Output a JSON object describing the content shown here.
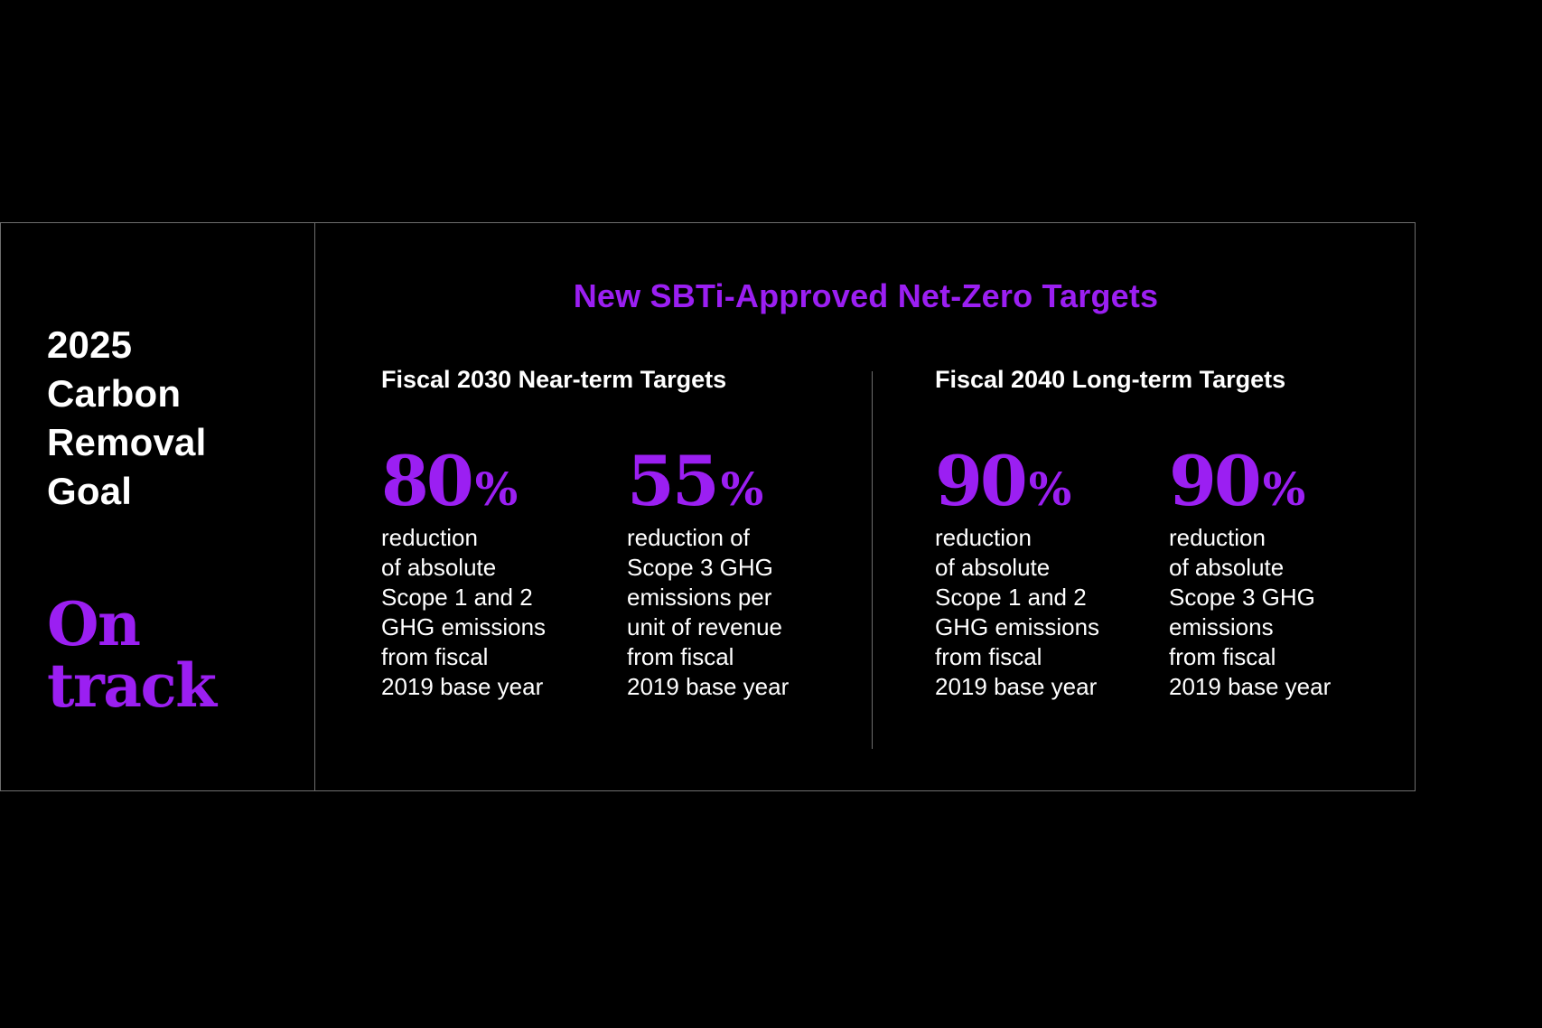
{
  "colors": {
    "background": "#000000",
    "accent": "#9b1ff2",
    "text": "#ffffff",
    "border": "#6e6e6e"
  },
  "goal": {
    "title": "2025\nCarbon\nRemoval\nGoal",
    "status": "On\ntrack"
  },
  "heading": "New SBTi-Approved Net-Zero Targets",
  "groups": [
    {
      "title": "Fiscal 2030 Near-term Targets",
      "targets": [
        {
          "value": "80",
          "unit": "%",
          "description": "reduction\nof absolute\nScope 1 and 2\nGHG emissions\nfrom fiscal\n2019 base year"
        },
        {
          "value": "55",
          "unit": "%",
          "description": "reduction of\nScope 3 GHG\nemissions per\nunit of revenue\nfrom fiscal\n2019 base year"
        }
      ]
    },
    {
      "title": "Fiscal 2040 Long-term Targets",
      "targets": [
        {
          "value": "90",
          "unit": "%",
          "description": "reduction\nof absolute\nScope 1 and 2\nGHG emissions\nfrom fiscal\n2019 base year"
        },
        {
          "value": "90",
          "unit": "%",
          "description": "reduction\nof absolute\nScope 3 GHG\nemissions\nfrom fiscal\n2019 base year"
        }
      ]
    }
  ]
}
